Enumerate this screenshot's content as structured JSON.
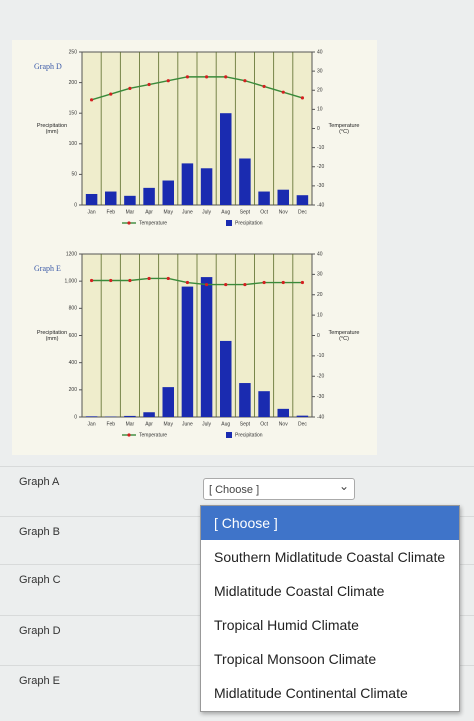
{
  "chart_data": [
    {
      "type": "bar-line",
      "title": "Graph D",
      "y_label": [
        "Precipitation",
        "(mm)"
      ],
      "y2_label": [
        "Temperature",
        "(°C)"
      ],
      "categories": [
        "Jan",
        "Feb",
        "Mar",
        "Apr",
        "May",
        "June",
        "July",
        "Aug",
        "Sept",
        "Oct",
        "Nov",
        "Dec"
      ],
      "series": [
        {
          "name": "Precipitation",
          "color": "#1a2bb0",
          "values": [
            18,
            22,
            15,
            28,
            40,
            68,
            60,
            150,
            76,
            22,
            25,
            16
          ]
        },
        {
          "name": "Temperature",
          "color": "#3a8a3a",
          "marker_color": "#d42020",
          "axis": "y2",
          "values": [
            15,
            18,
            21,
            23,
            25,
            27,
            27,
            27,
            25,
            22,
            19,
            16
          ]
        }
      ],
      "ylim": [
        0,
        250
      ],
      "yticks": [
        0,
        50,
        100,
        150,
        200,
        250
      ],
      "y2lim": [
        -40,
        40
      ],
      "y2ticks": [
        -40,
        -30,
        -20,
        -10,
        0,
        10,
        20,
        30,
        40
      ]
    },
    {
      "type": "bar-line",
      "title": "Graph E",
      "y_label": [
        "Precipitation",
        "(mm)"
      ],
      "y2_label": [
        "Temperature",
        "(°C)"
      ],
      "categories": [
        "Jan",
        "Feb",
        "Mar",
        "Apr",
        "May",
        "June",
        "July",
        "Aug",
        "Sept",
        "Oct",
        "Nov",
        "Dec"
      ],
      "series": [
        {
          "name": "Precipitation",
          "color": "#1a2bb0",
          "values": [
            5,
            3,
            8,
            35,
            220,
            960,
            1030,
            560,
            250,
            190,
            60,
            10
          ]
        },
        {
          "name": "Temperature",
          "color": "#3a8a3a",
          "marker_color": "#d42020",
          "axis": "y2",
          "values": [
            27,
            27,
            27,
            28,
            28,
            26,
            25,
            25,
            25,
            26,
            26,
            26
          ]
        }
      ],
      "ylim": [
        0,
        1200
      ],
      "yticks": [
        0,
        200,
        400,
        600,
        800,
        {
          "value": 1000,
          "label": "1,000"
        },
        1200
      ],
      "y2lim": [
        -40,
        40
      ],
      "y2ticks": [
        -40,
        -30,
        -20,
        -10,
        0,
        10,
        20,
        30,
        40
      ]
    }
  ],
  "form": {
    "questions": [
      "Graph A",
      "Graph B",
      "Graph C",
      "Graph D",
      "Graph E"
    ],
    "select": "[ Choose ]",
    "options": [
      "[ Choose ]",
      "Southern Midlatitude Coastal Climate",
      "Midlatitude Coastal Climate",
      "Tropical Humid Climate",
      "Tropical Monsoon Climate",
      "Midlatitude Continental Climate"
    ]
  }
}
